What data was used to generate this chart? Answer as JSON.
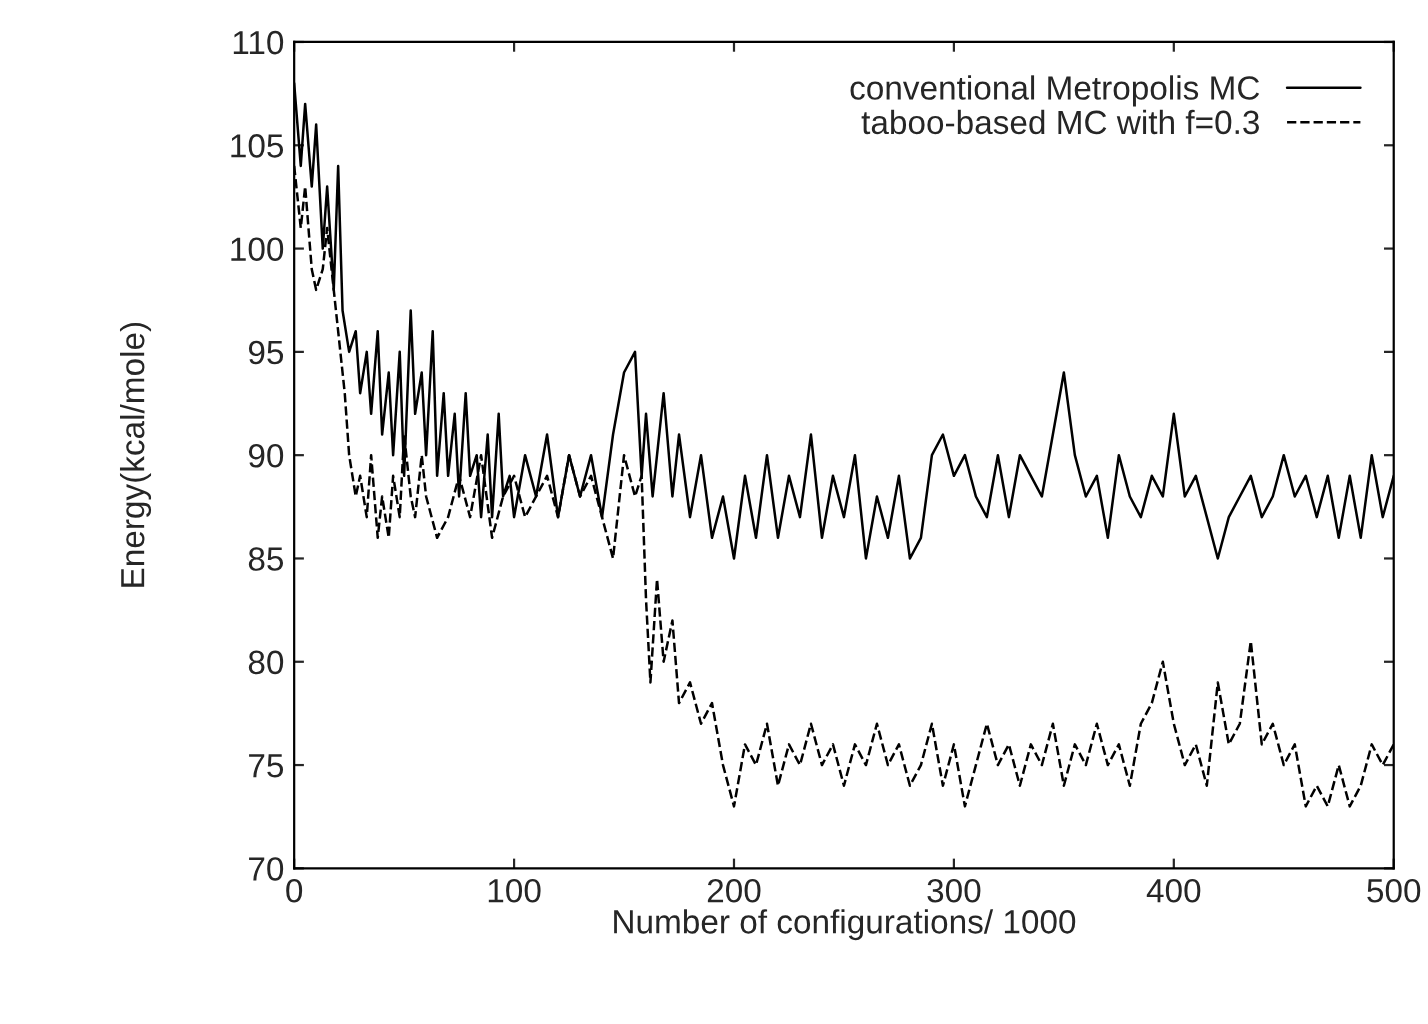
{
  "chart_data": {
    "type": "line",
    "xlabel": "Number of configurations/ 1000",
    "ylabel": "Energy(kcal/mole)",
    "xlim": [
      0,
      500
    ],
    "ylim": [
      70,
      110
    ],
    "xticks": [
      0,
      100,
      200,
      300,
      400,
      500
    ],
    "yticks": [
      70,
      75,
      80,
      85,
      90,
      95,
      100,
      105,
      110
    ],
    "grid": false,
    "legend": "top right",
    "marker": "none",
    "series": [
      {
        "name": "conventional Metropolis MC",
        "color": "#000000",
        "line_style": "solid",
        "x": [
          0,
          3,
          5,
          8,
          10,
          13,
          15,
          18,
          20,
          22,
          25,
          28,
          30,
          33,
          35,
          38,
          40,
          43,
          45,
          48,
          50,
          53,
          55,
          58,
          60,
          63,
          65,
          68,
          70,
          73,
          75,
          78,
          80,
          83,
          85,
          88,
          90,
          93,
          95,
          98,
          100,
          105,
          110,
          115,
          120,
          125,
          130,
          135,
          140,
          145,
          150,
          155,
          158,
          160,
          163,
          168,
          172,
          175,
          180,
          185,
          190,
          195,
          200,
          205,
          210,
          215,
          220,
          225,
          230,
          235,
          240,
          245,
          250,
          255,
          260,
          265,
          270,
          275,
          280,
          285,
          290,
          295,
          300,
          305,
          310,
          315,
          320,
          325,
          330,
          335,
          340,
          345,
          350,
          355,
          360,
          365,
          370,
          375,
          380,
          385,
          390,
          395,
          400,
          405,
          410,
          415,
          420,
          425,
          430,
          435,
          440,
          445,
          450,
          455,
          460,
          465,
          470,
          475,
          480,
          485,
          490,
          495,
          500
        ],
        "values": [
          108,
          104,
          107,
          103,
          106,
          100,
          103,
          98,
          104,
          97,
          95,
          96,
          93,
          95,
          92,
          96,
          91,
          94,
          90,
          95,
          89,
          97,
          92,
          94,
          90,
          96,
          89,
          93,
          89,
          92,
          88,
          93,
          89,
          90,
          87,
          91,
          87,
          92,
          88,
          89,
          87,
          90,
          88,
          91,
          87,
          90,
          88,
          90,
          87,
          91,
          94,
          95,
          89,
          92,
          88,
          93,
          88,
          91,
          87,
          90,
          86,
          88,
          85,
          89,
          86,
          90,
          86,
          89,
          87,
          91,
          86,
          89,
          87,
          90,
          85,
          88,
          86,
          89,
          85,
          86,
          90,
          91,
          89,
          90,
          88,
          87,
          90,
          87,
          90,
          89,
          88,
          91,
          94,
          90,
          88,
          89,
          86,
          90,
          88,
          87,
          89,
          88,
          92,
          88,
          89,
          87,
          85,
          87,
          88,
          89,
          87,
          88,
          90,
          88,
          89,
          87,
          89,
          86,
          89,
          86,
          90,
          87,
          89
        ]
      },
      {
        "name": "taboo-based MC with f=0.3",
        "color": "#000000",
        "line_style": "dashed",
        "x": [
          0,
          3,
          5,
          8,
          10,
          13,
          15,
          18,
          20,
          23,
          25,
          28,
          30,
          33,
          35,
          38,
          40,
          43,
          45,
          48,
          50,
          53,
          55,
          58,
          60,
          65,
          70,
          75,
          80,
          85,
          90,
          95,
          100,
          105,
          110,
          115,
          120,
          125,
          130,
          135,
          140,
          145,
          150,
          155,
          158,
          160,
          162,
          165,
          168,
          172,
          175,
          180,
          185,
          190,
          195,
          200,
          205,
          210,
          215,
          220,
          225,
          230,
          235,
          240,
          245,
          250,
          255,
          260,
          265,
          270,
          275,
          280,
          285,
          290,
          295,
          300,
          305,
          310,
          315,
          320,
          325,
          330,
          335,
          340,
          345,
          350,
          355,
          360,
          365,
          370,
          375,
          380,
          385,
          390,
          395,
          400,
          405,
          410,
          415,
          420,
          425,
          430,
          435,
          440,
          445,
          450,
          455,
          460,
          465,
          470,
          475,
          480,
          485,
          490,
          495,
          500
        ],
        "values": [
          104,
          101,
          103,
          99,
          98,
          99,
          101,
          98,
          96,
          93,
          90,
          88,
          89,
          87,
          90,
          86,
          88,
          86,
          89,
          87,
          91,
          88,
          87,
          90,
          88,
          86,
          87,
          89,
          87,
          90,
          86,
          88,
          89,
          87,
          88,
          89,
          87,
          90,
          88,
          89,
          87,
          85,
          90,
          88,
          89,
          83,
          79,
          84,
          80,
          82,
          78,
          79,
          77,
          78,
          75,
          73,
          76,
          75,
          77,
          74,
          76,
          75,
          77,
          75,
          76,
          74,
          76,
          75,
          77,
          75,
          76,
          74,
          75,
          77,
          74,
          76,
          73,
          75,
          77,
          75,
          76,
          74,
          76,
          75,
          77,
          74,
          76,
          75,
          77,
          75,
          76,
          74,
          77,
          78,
          80,
          77,
          75,
          76,
          74,
          79,
          76,
          77,
          81,
          76,
          77,
          75,
          76,
          73,
          74,
          73,
          75,
          73,
          74,
          76,
          75,
          76
        ]
      }
    ]
  }
}
